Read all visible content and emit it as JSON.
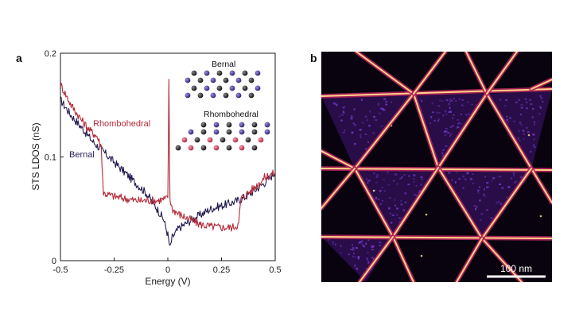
{
  "panel_a": {
    "letter": "a",
    "chart_data": {
      "type": "line",
      "title": "",
      "xlabel": "Energy (V)",
      "ylabel": "STS LDOS (nS)",
      "xlim": [
        -0.5,
        0.5
      ],
      "ylim": [
        0,
        0.2
      ],
      "x_ticks": [
        "-0.5",
        "-0.25",
        "0",
        "0.25",
        "0.5"
      ],
      "y_ticks": [
        "0",
        "0.1",
        "0.2"
      ],
      "series": [
        {
          "name": "Bernal",
          "color": "#241b4f",
          "x": [
            -0.5,
            -0.45,
            -0.4,
            -0.35,
            -0.3,
            -0.25,
            -0.2,
            -0.15,
            -0.1,
            -0.05,
            -0.02,
            0.0,
            0.01,
            0.02,
            0.04,
            0.05,
            0.1,
            0.15,
            0.2,
            0.25,
            0.3,
            0.35,
            0.4,
            0.45,
            0.5
          ],
          "y": [
            0.155,
            0.14,
            0.128,
            0.115,
            0.105,
            0.095,
            0.085,
            0.075,
            0.065,
            0.05,
            0.04,
            0.025,
            0.012,
            0.022,
            0.028,
            0.031,
            0.038,
            0.044,
            0.05,
            0.053,
            0.056,
            0.06,
            0.067,
            0.075,
            0.085
          ]
        },
        {
          "name": "Rhombohedral",
          "color": "#b32a38",
          "x": [
            -0.5,
            -0.45,
            -0.4,
            -0.36,
            -0.33,
            -0.31,
            -0.3,
            -0.25,
            -0.2,
            -0.15,
            -0.1,
            -0.05,
            0.0,
            0.005,
            0.01,
            0.02,
            0.05,
            0.1,
            0.15,
            0.2,
            0.25,
            0.3,
            0.33,
            0.34,
            0.36,
            0.4,
            0.45,
            0.5
          ],
          "y": [
            0.17,
            0.15,
            0.135,
            0.125,
            0.12,
            0.11,
            0.065,
            0.062,
            0.06,
            0.058,
            0.058,
            0.058,
            0.06,
            0.172,
            0.06,
            0.05,
            0.045,
            0.04,
            0.035,
            0.033,
            0.032,
            0.032,
            0.035,
            0.06,
            0.063,
            0.07,
            0.08,
            0.085
          ]
        }
      ]
    },
    "inset": {
      "bernal_label": "Bernal",
      "rhombohedral_label": "Rhombohedral",
      "atom_colors": {
        "black": "#1c1c1c",
        "blue": "#3e3090",
        "red": "#c83e55"
      }
    }
  },
  "panel_b": {
    "letter": "b",
    "scale_bar_label": "100 nm",
    "colors": {
      "background": "#08030f",
      "domain": "#2a0e4c",
      "speckle": "#7a3ad0",
      "wall_outer": "#b3235a",
      "wall_core": "#ffd38a"
    }
  }
}
